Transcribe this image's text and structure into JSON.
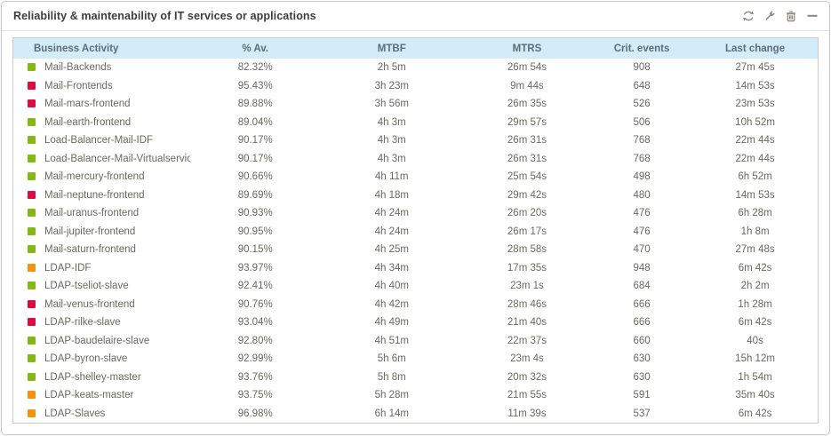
{
  "panel": {
    "title": "Reliability & maintenability of IT services or applications",
    "toolbar_icons": [
      "refresh",
      "configure",
      "delete",
      "minimize"
    ]
  },
  "colors": {
    "header_bg": "#d3ecf8",
    "panel_border": "#c9c9c9",
    "title_text": "#3d3d3d",
    "header_text": "#5b6e78",
    "body_text": "#6b685f",
    "icon_color": "#8b857c",
    "status": {
      "ok": "#84b818",
      "critical": "#dd0b44",
      "warning": "#f6920f"
    }
  },
  "table": {
    "columns": [
      "Business Activity",
      "% Av.",
      "MTBF",
      "MTRS",
      "Crit. events",
      "Last change"
    ],
    "rows": [
      {
        "status": "ok",
        "name": "Mail-Backends",
        "av": "82.32%",
        "mtbf": "2h 5m",
        "mtrs": "26m 54s",
        "crit": "908",
        "change": "27m 45s"
      },
      {
        "status": "critical",
        "name": "Mail-Frontends",
        "av": "95.43%",
        "mtbf": "3h 23m",
        "mtrs": "9m 44s",
        "crit": "648",
        "change": "14m 53s"
      },
      {
        "status": "critical",
        "name": "Mail-mars-frontend",
        "av": "89.88%",
        "mtbf": "3h 56m",
        "mtrs": "26m 35s",
        "crit": "526",
        "change": "23m 53s"
      },
      {
        "status": "ok",
        "name": "Mail-earth-frontend",
        "av": "89.04%",
        "mtbf": "4h 3m",
        "mtrs": "29m 57s",
        "crit": "506",
        "change": "10h 52m"
      },
      {
        "status": "ok",
        "name": "Load-Balancer-Mail-IDF",
        "av": "90.17%",
        "mtbf": "4h 3m",
        "mtrs": "26m 31s",
        "crit": "768",
        "change": "22m 44s"
      },
      {
        "status": "ok",
        "name": "Load-Balancer-Mail-Virtualservice",
        "av": "90.17%",
        "mtbf": "4h 3m",
        "mtrs": "26m 31s",
        "crit": "768",
        "change": "22m 44s"
      },
      {
        "status": "ok",
        "name": "Mail-mercury-frontend",
        "av": "90.66%",
        "mtbf": "4h 11m",
        "mtrs": "25m 54s",
        "crit": "498",
        "change": "6h 52m"
      },
      {
        "status": "critical",
        "name": "Mail-neptune-frontend",
        "av": "89.69%",
        "mtbf": "4h 18m",
        "mtrs": "29m 42s",
        "crit": "480",
        "change": "14m 53s"
      },
      {
        "status": "ok",
        "name": "Mail-uranus-frontend",
        "av": "90.93%",
        "mtbf": "4h 24m",
        "mtrs": "26m 20s",
        "crit": "476",
        "change": "6h 28m"
      },
      {
        "status": "ok",
        "name": "Mail-jupiter-frontend",
        "av": "90.95%",
        "mtbf": "4h 24m",
        "mtrs": "26m 17s",
        "crit": "476",
        "change": "1h 8m"
      },
      {
        "status": "ok",
        "name": "Mail-saturn-frontend",
        "av": "90.15%",
        "mtbf": "4h 25m",
        "mtrs": "28m 58s",
        "crit": "470",
        "change": "27m 48s"
      },
      {
        "status": "warning",
        "name": "LDAP-IDF",
        "av": "93.97%",
        "mtbf": "4h 34m",
        "mtrs": "17m 35s",
        "crit": "948",
        "change": "6m 42s"
      },
      {
        "status": "ok",
        "name": "LDAP-tseliot-slave",
        "av": "92.41%",
        "mtbf": "4h 40m",
        "mtrs": "23m 1s",
        "crit": "684",
        "change": "2h 2m"
      },
      {
        "status": "critical",
        "name": "Mail-venus-frontend",
        "av": "90.76%",
        "mtbf": "4h 42m",
        "mtrs": "28m 46s",
        "crit": "666",
        "change": "1h 28m"
      },
      {
        "status": "critical",
        "name": "LDAP-rilke-slave",
        "av": "93.04%",
        "mtbf": "4h 49m",
        "mtrs": "21m 40s",
        "crit": "666",
        "change": "6m 42s"
      },
      {
        "status": "ok",
        "name": "LDAP-baudelaire-slave",
        "av": "92.80%",
        "mtbf": "4h 51m",
        "mtrs": "22m 37s",
        "crit": "660",
        "change": "40s"
      },
      {
        "status": "ok",
        "name": "LDAP-byron-slave",
        "av": "92.99%",
        "mtbf": "5h 6m",
        "mtrs": "23m 4s",
        "crit": "630",
        "change": "15h 12m"
      },
      {
        "status": "ok",
        "name": "LDAP-shelley-master",
        "av": "93.76%",
        "mtbf": "5h 8m",
        "mtrs": "20m 32s",
        "crit": "630",
        "change": "1h 54m"
      },
      {
        "status": "warning",
        "name": "LDAP-keats-master",
        "av": "93.75%",
        "mtbf": "5h 28m",
        "mtrs": "21m 55s",
        "crit": "591",
        "change": "35m 40s"
      },
      {
        "status": "warning",
        "name": "LDAP-Slaves",
        "av": "96.98%",
        "mtbf": "6h 14m",
        "mtrs": "11m 39s",
        "crit": "537",
        "change": "6m 42s"
      }
    ]
  }
}
